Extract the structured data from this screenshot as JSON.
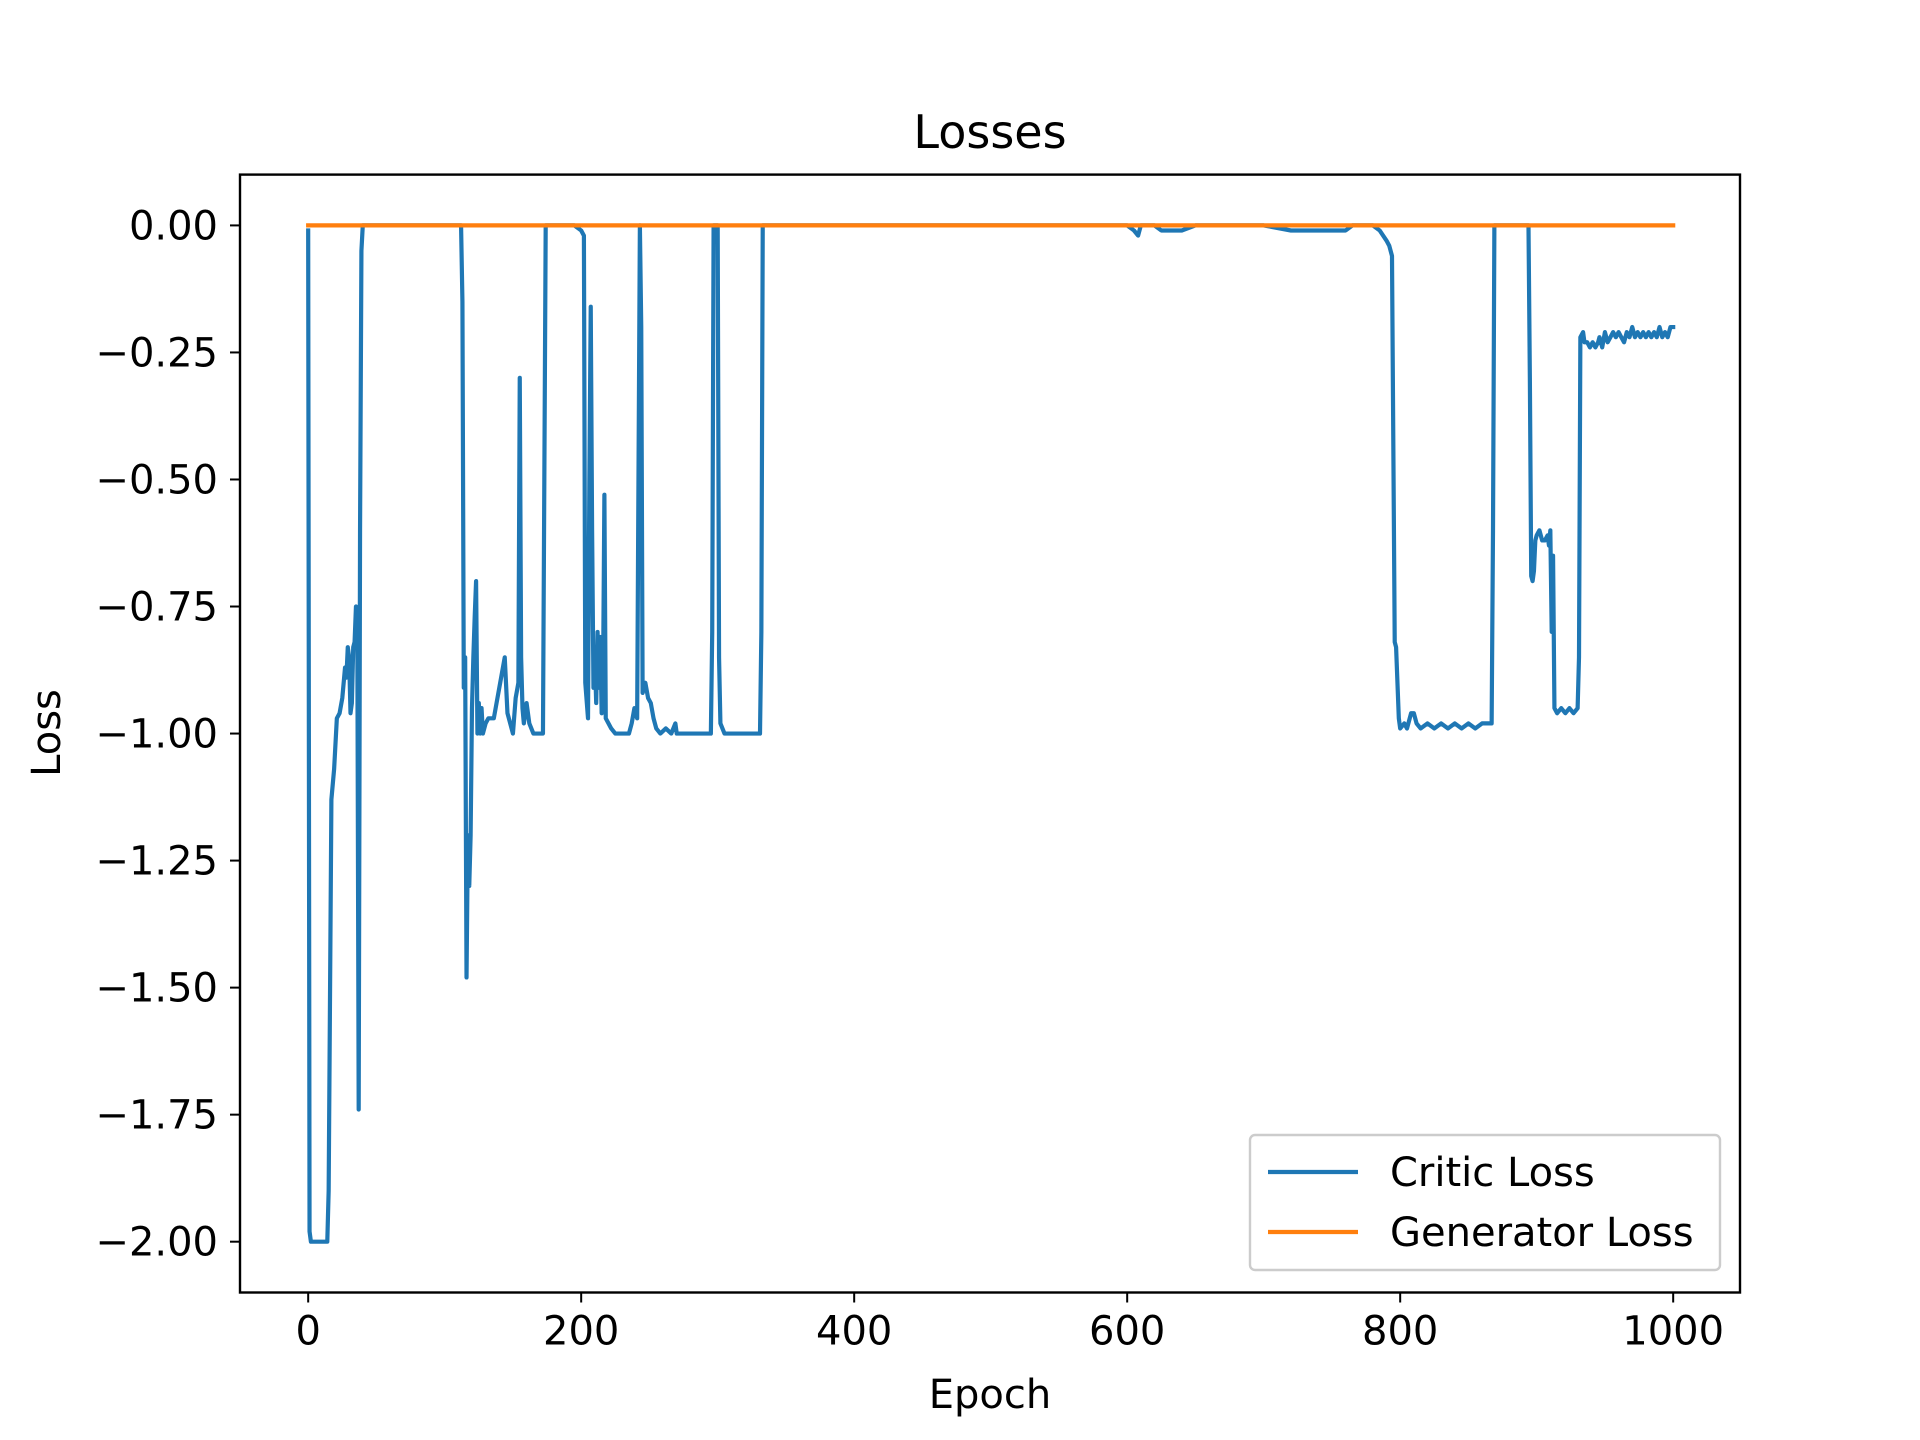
{
  "chart_data": {
    "type": "line",
    "title": "Losses",
    "xlabel": "Epoch",
    "ylabel": "Loss",
    "xlim": [
      -49.95,
      1048.95
    ],
    "ylim": [
      -2.1,
      0.1
    ],
    "xticks": [
      0,
      200,
      400,
      600,
      800,
      1000
    ],
    "xtick_labels": [
      "0",
      "200",
      "400",
      "600",
      "800",
      "1000"
    ],
    "yticks": [
      0.0,
      -0.25,
      -0.5,
      -0.75,
      -1.0,
      -1.25,
      -1.5,
      -1.75,
      -2.0
    ],
    "ytick_labels": [
      "0.00",
      "−0.25",
      "−0.50",
      "−0.75",
      "−1.00",
      "−1.25",
      "−1.50",
      "−1.75",
      "−2.00"
    ],
    "grid": false,
    "legend_position": "lower-right",
    "series": [
      {
        "name": "Critic Loss",
        "color": "#1f77b4",
        "points": [
          [
            0,
            -0.01
          ],
          [
            1,
            -1.98
          ],
          [
            2,
            -2.0
          ],
          [
            14,
            -2.0
          ],
          [
            15,
            -1.9
          ],
          [
            17,
            -1.13
          ],
          [
            19,
            -1.07
          ],
          [
            21,
            -0.97
          ],
          [
            23,
            -0.96
          ],
          [
            25,
            -0.93
          ],
          [
            27,
            -0.87
          ],
          [
            28,
            -0.89
          ],
          [
            29,
            -0.83
          ],
          [
            30,
            -0.85
          ],
          [
            31,
            -0.96
          ],
          [
            32,
            -0.94
          ],
          [
            33,
            -0.83
          ],
          [
            34,
            -0.82
          ],
          [
            35,
            -0.75
          ],
          [
            36,
            -0.8
          ],
          [
            37,
            -1.74
          ],
          [
            38,
            -0.6
          ],
          [
            39,
            -0.05
          ],
          [
            40,
            0.0
          ],
          [
            112,
            0.0
          ],
          [
            113,
            -0.15
          ],
          [
            114,
            -0.91
          ],
          [
            115,
            -0.85
          ],
          [
            116,
            -1.48
          ],
          [
            117,
            -1.2
          ],
          [
            118,
            -1.3
          ],
          [
            119,
            -1.2
          ],
          [
            120,
            -0.95
          ],
          [
            121,
            -0.85
          ],
          [
            122,
            -0.77
          ],
          [
            123,
            -0.7
          ],
          [
            124,
            -1.0
          ],
          [
            125,
            -0.94
          ],
          [
            126,
            -1.0
          ],
          [
            127,
            -0.95
          ],
          [
            128,
            -1.0
          ],
          [
            130,
            -0.98
          ],
          [
            132,
            -0.97
          ],
          [
            136,
            -0.97
          ],
          [
            138,
            -0.94
          ],
          [
            140,
            -0.91
          ],
          [
            142,
            -0.88
          ],
          [
            144,
            -0.85
          ],
          [
            146,
            -0.96
          ],
          [
            148,
            -0.98
          ],
          [
            150,
            -1.0
          ],
          [
            152,
            -0.93
          ],
          [
            154,
            -0.9
          ],
          [
            155,
            -0.3
          ],
          [
            156,
            -0.85
          ],
          [
            157,
            -0.95
          ],
          [
            158,
            -0.98
          ],
          [
            160,
            -0.94
          ],
          [
            162,
            -0.98
          ],
          [
            165,
            -1.0
          ],
          [
            172,
            -1.0
          ],
          [
            173,
            -0.5
          ],
          [
            174,
            0.0
          ],
          [
            195,
            0.0
          ],
          [
            200,
            -0.01
          ],
          [
            202,
            -0.02
          ],
          [
            203,
            -0.9
          ],
          [
            205,
            -0.97
          ],
          [
            206,
            -0.5
          ],
          [
            207,
            -0.16
          ],
          [
            208,
            -0.6
          ],
          [
            209,
            -0.91
          ],
          [
            210,
            -0.85
          ],
          [
            211,
            -0.94
          ],
          [
            212,
            -0.8
          ],
          [
            213,
            -0.91
          ],
          [
            214,
            -0.81
          ],
          [
            215,
            -0.96
          ],
          [
            216,
            -0.9
          ],
          [
            217,
            -0.53
          ],
          [
            218,
            -0.97
          ],
          [
            220,
            -0.98
          ],
          [
            222,
            -0.99
          ],
          [
            225,
            -1.0
          ],
          [
            235,
            -1.0
          ],
          [
            237,
            -0.98
          ],
          [
            239,
            -0.95
          ],
          [
            241,
            -0.97
          ],
          [
            243,
            0.0
          ],
          [
            244,
            -0.2
          ],
          [
            245,
            -0.92
          ],
          [
            247,
            -0.9
          ],
          [
            249,
            -0.93
          ],
          [
            251,
            -0.94
          ],
          [
            253,
            -0.97
          ],
          [
            255,
            -0.99
          ],
          [
            258,
            -1.0
          ],
          [
            262,
            -0.99
          ],
          [
            266,
            -1.0
          ],
          [
            269,
            -0.98
          ],
          [
            270,
            -1.0
          ],
          [
            295,
            -1.0
          ],
          [
            296,
            -0.8
          ],
          [
            297,
            0.0
          ],
          [
            300,
            0.0
          ],
          [
            301,
            -0.85
          ],
          [
            302,
            -0.98
          ],
          [
            305,
            -1.0
          ],
          [
            331,
            -1.0
          ],
          [
            332,
            -0.8
          ],
          [
            333,
            0.0
          ],
          [
            400,
            0.0
          ],
          [
            600,
            0.0
          ],
          [
            605,
            -0.01
          ],
          [
            608,
            -0.02
          ],
          [
            610,
            0.0
          ],
          [
            620,
            0.0
          ],
          [
            625,
            -0.01
          ],
          [
            640,
            -0.01
          ],
          [
            650,
            0.0
          ],
          [
            700,
            0.0
          ],
          [
            720,
            -0.01
          ],
          [
            760,
            -0.01
          ],
          [
            765,
            0.0
          ],
          [
            780,
            0.0
          ],
          [
            785,
            -0.01
          ],
          [
            790,
            -0.03
          ],
          [
            792,
            -0.04
          ],
          [
            794,
            -0.06
          ],
          [
            796,
            -0.82
          ],
          [
            797,
            -0.83
          ],
          [
            798,
            -0.9
          ],
          [
            799,
            -0.97
          ],
          [
            800,
            -0.99
          ],
          [
            803,
            -0.98
          ],
          [
            805,
            -0.99
          ],
          [
            808,
            -0.96
          ],
          [
            810,
            -0.96
          ],
          [
            812,
            -0.98
          ],
          [
            815,
            -0.99
          ],
          [
            820,
            -0.98
          ],
          [
            825,
            -0.99
          ],
          [
            830,
            -0.98
          ],
          [
            835,
            -0.99
          ],
          [
            840,
            -0.98
          ],
          [
            845,
            -0.99
          ],
          [
            850,
            -0.98
          ],
          [
            855,
            -0.99
          ],
          [
            860,
            -0.98
          ],
          [
            867,
            -0.98
          ],
          [
            868,
            -0.6
          ],
          [
            869,
            0.0
          ],
          [
            894,
            0.0
          ],
          [
            895,
            -0.3
          ],
          [
            896,
            -0.69
          ],
          [
            897,
            -0.7
          ],
          [
            898,
            -0.68
          ],
          [
            899,
            -0.62
          ],
          [
            900,
            -0.61
          ],
          [
            902,
            -0.6
          ],
          [
            904,
            -0.62
          ],
          [
            906,
            -0.62
          ],
          [
            908,
            -0.61
          ],
          [
            909,
            -0.63
          ],
          [
            910,
            -0.6
          ],
          [
            911,
            -0.8
          ],
          [
            912,
            -0.65
          ],
          [
            913,
            -0.95
          ],
          [
            915,
            -0.96
          ],
          [
            918,
            -0.95
          ],
          [
            921,
            -0.96
          ],
          [
            924,
            -0.95
          ],
          [
            927,
            -0.96
          ],
          [
            930,
            -0.95
          ],
          [
            931,
            -0.85
          ],
          [
            932,
            -0.22
          ],
          [
            934,
            -0.21
          ],
          [
            935,
            -0.23
          ],
          [
            937,
            -0.23
          ],
          [
            939,
            -0.24
          ],
          [
            941,
            -0.23
          ],
          [
            943,
            -0.24
          ],
          [
            945,
            -0.23
          ],
          [
            946,
            -0.22
          ],
          [
            948,
            -0.24
          ],
          [
            950,
            -0.21
          ],
          [
            952,
            -0.23
          ],
          [
            954,
            -0.22
          ],
          [
            956,
            -0.21
          ],
          [
            958,
            -0.22
          ],
          [
            960,
            -0.21
          ],
          [
            962,
            -0.22
          ],
          [
            964,
            -0.23
          ],
          [
            966,
            -0.21
          ],
          [
            968,
            -0.22
          ],
          [
            970,
            -0.2
          ],
          [
            972,
            -0.22
          ],
          [
            974,
            -0.21
          ],
          [
            976,
            -0.22
          ],
          [
            978,
            -0.21
          ],
          [
            980,
            -0.22
          ],
          [
            982,
            -0.21
          ],
          [
            984,
            -0.22
          ],
          [
            986,
            -0.21
          ],
          [
            988,
            -0.22
          ],
          [
            990,
            -0.2
          ],
          [
            992,
            -0.22
          ],
          [
            994,
            -0.21
          ],
          [
            996,
            -0.22
          ],
          [
            998,
            -0.2
          ],
          [
            1000,
            -0.2
          ]
        ]
      },
      {
        "name": "Generator Loss",
        "color": "#ff7f0e",
        "points": [
          [
            0,
            0.0
          ],
          [
            1000,
            0.0
          ]
        ]
      }
    ]
  }
}
